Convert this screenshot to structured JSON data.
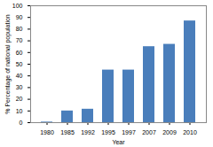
{
  "chart_data": {
    "type": "bar",
    "categories": [
      "1980",
      "1985",
      "1992",
      "1995",
      "1997",
      "2007",
      "2009",
      "2010"
    ],
    "values": [
      0.5,
      10,
      11.5,
      45,
      45,
      65,
      67,
      87
    ],
    "color": "#4a7ebb",
    "xlabel": "Year",
    "ylabel": "% Percentage of national population",
    "ylim": [
      0,
      100
    ],
    "yticks": [
      0,
      10,
      20,
      30,
      40,
      50,
      60,
      70,
      80,
      90,
      100
    ],
    "grid": false
  }
}
